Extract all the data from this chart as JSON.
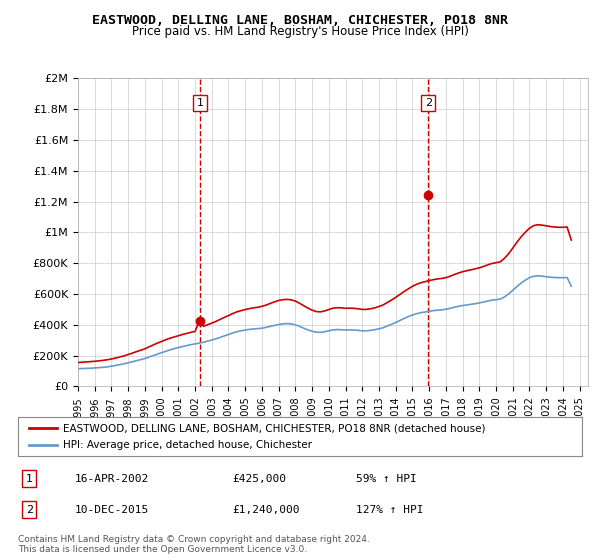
{
  "title": "EASTWOOD, DELLING LANE, BOSHAM, CHICHESTER, PO18 8NR",
  "subtitle": "Price paid vs. HM Land Registry's House Price Index (HPI)",
  "ylabel_ticks": [
    "£0",
    "£200K",
    "£400K",
    "£600K",
    "£800K",
    "£1M",
    "£1.2M",
    "£1.4M",
    "£1.6M",
    "£1.8M",
    "£2M"
  ],
  "ytick_values": [
    0,
    200000,
    400000,
    600000,
    800000,
    1000000,
    1200000,
    1400000,
    1600000,
    1800000,
    2000000
  ],
  "ylim": [
    0,
    2000000
  ],
  "xlim_start": 1995.0,
  "xlim_end": 2025.5,
  "xtick_years": [
    1995,
    1996,
    1997,
    1998,
    1999,
    2000,
    2001,
    2002,
    2003,
    2004,
    2005,
    2006,
    2007,
    2008,
    2009,
    2010,
    2011,
    2012,
    2013,
    2014,
    2015,
    2016,
    2017,
    2018,
    2019,
    2020,
    2021,
    2022,
    2023,
    2024,
    2025
  ],
  "hpi_color": "#6699cc",
  "price_color": "#cc0000",
  "marker1_date": 2002.29,
  "marker1_value": 425000,
  "marker1_label": "1",
  "marker2_date": 2015.95,
  "marker2_value": 1240000,
  "marker2_label": "2",
  "vline_color": "#cc0000",
  "vline_style": "dashed",
  "legend_line1": "EASTWOOD, DELLING LANE, BOSHAM, CHICHESTER, PO18 8NR (detached house)",
  "legend_line2": "HPI: Average price, detached house, Chichester",
  "table_row1": [
    "1",
    "16-APR-2002",
    "£425,000",
    "59% ↑ HPI"
  ],
  "table_row2": [
    "2",
    "10-DEC-2015",
    "£1,240,000",
    "127% ↑ HPI"
  ],
  "footnote": "Contains HM Land Registry data © Crown copyright and database right 2024.\nThis data is licensed under the Open Government Licence v3.0.",
  "bg_color": "#ffffff",
  "grid_color": "#cccccc",
  "hpi_data_x": [
    1995.0,
    1995.25,
    1995.5,
    1995.75,
    1996.0,
    1996.25,
    1996.5,
    1996.75,
    1997.0,
    1997.25,
    1997.5,
    1997.75,
    1998.0,
    1998.25,
    1998.5,
    1998.75,
    1999.0,
    1999.25,
    1999.5,
    1999.75,
    2000.0,
    2000.25,
    2000.5,
    2000.75,
    2001.0,
    2001.25,
    2001.5,
    2001.75,
    2002.0,
    2002.25,
    2002.5,
    2002.75,
    2003.0,
    2003.25,
    2003.5,
    2003.75,
    2004.0,
    2004.25,
    2004.5,
    2004.75,
    2005.0,
    2005.25,
    2005.5,
    2005.75,
    2006.0,
    2006.25,
    2006.5,
    2006.75,
    2007.0,
    2007.25,
    2007.5,
    2007.75,
    2008.0,
    2008.25,
    2008.5,
    2008.75,
    2009.0,
    2009.25,
    2009.5,
    2009.75,
    2010.0,
    2010.25,
    2010.5,
    2010.75,
    2011.0,
    2011.25,
    2011.5,
    2011.75,
    2012.0,
    2012.25,
    2012.5,
    2012.75,
    2013.0,
    2013.25,
    2013.5,
    2013.75,
    2014.0,
    2014.25,
    2014.5,
    2014.75,
    2015.0,
    2015.25,
    2015.5,
    2015.75,
    2016.0,
    2016.25,
    2016.5,
    2016.75,
    2017.0,
    2017.25,
    2017.5,
    2017.75,
    2018.0,
    2018.25,
    2018.5,
    2018.75,
    2019.0,
    2019.25,
    2019.5,
    2019.75,
    2020.0,
    2020.25,
    2020.5,
    2020.75,
    2021.0,
    2021.25,
    2021.5,
    2021.75,
    2022.0,
    2022.25,
    2022.5,
    2022.75,
    2023.0,
    2023.25,
    2023.5,
    2023.75,
    2024.0,
    2024.25,
    2024.5
  ],
  "hpi_data_y": [
    115000,
    116000,
    117000,
    118000,
    120000,
    122000,
    124000,
    127000,
    131000,
    136000,
    141000,
    147000,
    153000,
    160000,
    167000,
    174000,
    181000,
    191000,
    200000,
    210000,
    219000,
    228000,
    237000,
    245000,
    252000,
    259000,
    265000,
    271000,
    276000,
    281000,
    287000,
    294000,
    301000,
    309000,
    318000,
    328000,
    337000,
    347000,
    355000,
    361000,
    366000,
    370000,
    373000,
    375000,
    378000,
    383000,
    390000,
    396000,
    402000,
    406000,
    408000,
    406000,
    400000,
    390000,
    378000,
    367000,
    358000,
    352000,
    351000,
    355000,
    361000,
    367000,
    369000,
    368000,
    366000,
    367000,
    366000,
    364000,
    361000,
    361000,
    364000,
    368000,
    374000,
    381000,
    392000,
    403000,
    415000,
    428000,
    441000,
    453000,
    464000,
    472000,
    479000,
    483000,
    488000,
    492000,
    495000,
    497000,
    501000,
    507000,
    514000,
    520000,
    525000,
    529000,
    533000,
    537000,
    542000,
    548000,
    554000,
    560000,
    563000,
    567000,
    580000,
    600000,
    624000,
    648000,
    671000,
    690000,
    706000,
    715000,
    718000,
    716000,
    712000,
    709000,
    707000,
    706000,
    706000,
    707000,
    650000
  ],
  "price_data_x": [
    1995.0,
    1995.25,
    1995.5,
    1995.75,
    1996.0,
    1996.25,
    1996.5,
    1996.75,
    1997.0,
    1997.25,
    1997.5,
    1997.75,
    1998.0,
    1998.25,
    1998.5,
    1998.75,
    1999.0,
    1999.25,
    1999.5,
    1999.75,
    2000.0,
    2000.25,
    2000.5,
    2000.75,
    2001.0,
    2001.25,
    2001.5,
    2001.75,
    2002.0,
    2002.25,
    2002.5,
    2002.75,
    2003.0,
    2003.25,
    2003.5,
    2003.75,
    2004.0,
    2004.25,
    2004.5,
    2004.75,
    2005.0,
    2005.25,
    2005.5,
    2005.75,
    2006.0,
    2006.25,
    2006.5,
    2006.75,
    2007.0,
    2007.25,
    2007.5,
    2007.75,
    2008.0,
    2008.25,
    2008.5,
    2008.75,
    2009.0,
    2009.25,
    2009.5,
    2009.75,
    2010.0,
    2010.25,
    2010.5,
    2010.75,
    2011.0,
    2011.25,
    2011.5,
    2011.75,
    2012.0,
    2012.25,
    2012.5,
    2012.75,
    2013.0,
    2013.25,
    2013.5,
    2013.75,
    2014.0,
    2014.25,
    2014.5,
    2014.75,
    2015.0,
    2015.25,
    2015.5,
    2015.75,
    2016.0,
    2016.25,
    2016.5,
    2016.75,
    2017.0,
    2017.25,
    2017.5,
    2017.75,
    2018.0,
    2018.25,
    2018.5,
    2018.75,
    2019.0,
    2019.25,
    2019.5,
    2019.75,
    2020.0,
    2020.25,
    2020.5,
    2020.75,
    2021.0,
    2021.25,
    2021.5,
    2021.75,
    2022.0,
    2022.25,
    2022.5,
    2022.75,
    2023.0,
    2023.25,
    2023.5,
    2023.75,
    2024.0,
    2024.25,
    2024.5
  ],
  "price_data_y": [
    155000,
    157000,
    159000,
    161000,
    163000,
    166000,
    169000,
    173000,
    178000,
    184000,
    191000,
    198000,
    207000,
    216000,
    226000,
    235000,
    244000,
    257000,
    269000,
    281000,
    292000,
    303000,
    313000,
    321000,
    329000,
    337000,
    344000,
    351000,
    357000,
    425000,
    390000,
    400000,
    411000,
    422000,
    435000,
    448000,
    460000,
    473000,
    484000,
    492000,
    499000,
    505000,
    510000,
    514000,
    520000,
    528000,
    539000,
    549000,
    558000,
    563000,
    565000,
    562000,
    554000,
    540000,
    524000,
    508000,
    495000,
    486000,
    484000,
    490000,
    499000,
    508000,
    511000,
    510000,
    507000,
    508000,
    507000,
    504000,
    500000,
    500000,
    504000,
    510000,
    519000,
    529000,
    545000,
    561000,
    578000,
    597000,
    616000,
    633000,
    650000,
    663000,
    673000,
    680000,
    687000,
    693000,
    698000,
    701000,
    706000,
    715000,
    726000,
    736000,
    745000,
    751000,
    757000,
    763000,
    770000,
    779000,
    789000,
    798000,
    803000,
    809000,
    831000,
    861000,
    898000,
    936000,
    971000,
    1001000,
    1027000,
    1044000,
    1050000,
    1047000,
    1043000,
    1038000,
    1035000,
    1033000,
    1033000,
    1035000,
    950000
  ]
}
